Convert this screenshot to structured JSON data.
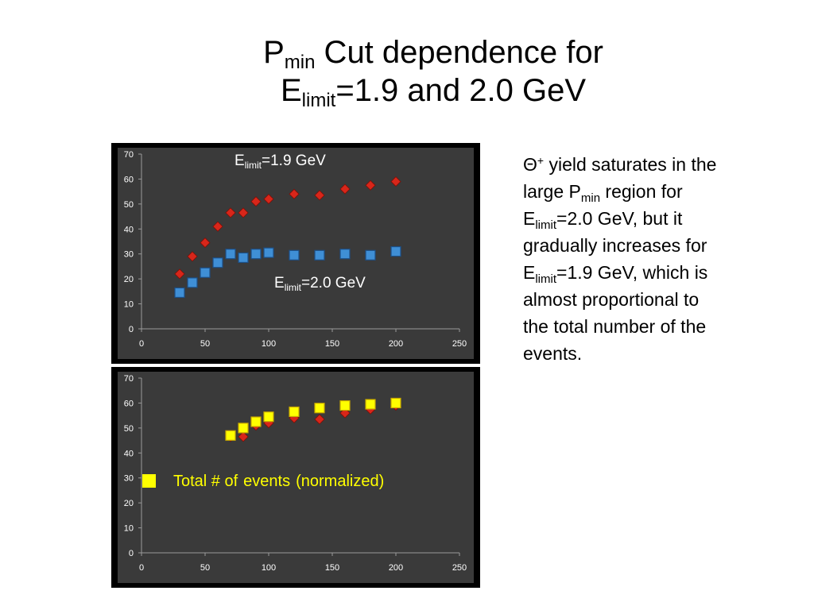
{
  "slide": {
    "title": {
      "line1_main": "P",
      "line1_sub": "min",
      "line1_rest": " Cut dependence for",
      "line2_main": "E",
      "line2_sub": "limit",
      "line2_rest": "=1.9 and 2.0 GeV"
    },
    "description": {
      "symbol": "Θ",
      "symbol_sup": "+",
      "l1_rest": " yield saturates in the",
      "l2_main": "large P",
      "l2_sub": "min",
      "l2_rest": " region for",
      "l3_main": "E",
      "l3_sub": "limit",
      "l3_rest": "=2.0 GeV, but it",
      "l4": "gradually increases for",
      "l5_main": "E",
      "l5_sub": "limit",
      "l5_rest": "=1.9 GeV, which is",
      "l6": "almost proportional to",
      "l7": "the total number of the",
      "l8": "events."
    }
  },
  "chart_data": [
    {
      "type": "scatter",
      "title": "",
      "xlabel": "",
      "ylabel": "",
      "xlim": [
        0,
        250
      ],
      "ylim": [
        0,
        70
      ],
      "x_ticks": [
        "0",
        "50",
        "100",
        "150",
        "200",
        "250"
      ],
      "y_ticks": [
        "0",
        "10",
        "20",
        "30",
        "40",
        "50",
        "60",
        "70"
      ],
      "grid": false,
      "background": "#3a3a3a",
      "annotations": [
        {
          "main": "E",
          "sub": "limit",
          "rest": "=1.9 GeV"
        },
        {
          "main": "E",
          "sub": "limit",
          "rest": "=2.0 GeV"
        }
      ],
      "series": [
        {
          "marker": "diamond",
          "color": "#d8261a",
          "x": [
            30,
            40,
            50,
            60,
            70,
            80,
            90,
            100,
            120,
            140,
            160,
            180,
            200
          ],
          "y": [
            22,
            29,
            34.5,
            41,
            46.5,
            46.5,
            51,
            52,
            54,
            53.5,
            56,
            57.5,
            59
          ]
        },
        {
          "marker": "square",
          "color": "#3f8fd6",
          "x": [
            30,
            40,
            50,
            60,
            70,
            80,
            90,
            100,
            120,
            140,
            160,
            180,
            200
          ],
          "y": [
            14.5,
            18.5,
            22.5,
            26.5,
            30,
            28.5,
            30,
            30.5,
            29.5,
            29.5,
            30,
            29.5,
            31
          ]
        }
      ]
    },
    {
      "type": "scatter",
      "title": "",
      "xlabel": "",
      "ylabel": "",
      "xlim": [
        0,
        250
      ],
      "ylim": [
        0,
        70
      ],
      "x_ticks": [
        "0",
        "50",
        "100",
        "150",
        "200",
        "250"
      ],
      "y_ticks": [
        "0",
        "10",
        "20",
        "30",
        "40",
        "50",
        "60",
        "70"
      ],
      "grid": false,
      "background": "#3a3a3a",
      "legend": {
        "position": "left",
        "words": [
          "Total # of",
          "events",
          "(normalized)"
        ]
      },
      "series": [
        {
          "marker": "diamond",
          "color": "#d8261a",
          "x": [
            70,
            80,
            90,
            100,
            120,
            140,
            160,
            180,
            200
          ],
          "y": [
            46.5,
            46.5,
            51,
            52,
            54,
            53.5,
            56,
            57.5,
            59
          ]
        },
        {
          "name": "Total # of events (normalized)",
          "marker": "square",
          "color": "#ffff00",
          "x": [
            70,
            80,
            90,
            100,
            120,
            140,
            160,
            180,
            200
          ],
          "y": [
            47,
            50,
            52.5,
            54.5,
            56.5,
            58,
            59,
            59.5,
            60
          ]
        }
      ]
    }
  ]
}
